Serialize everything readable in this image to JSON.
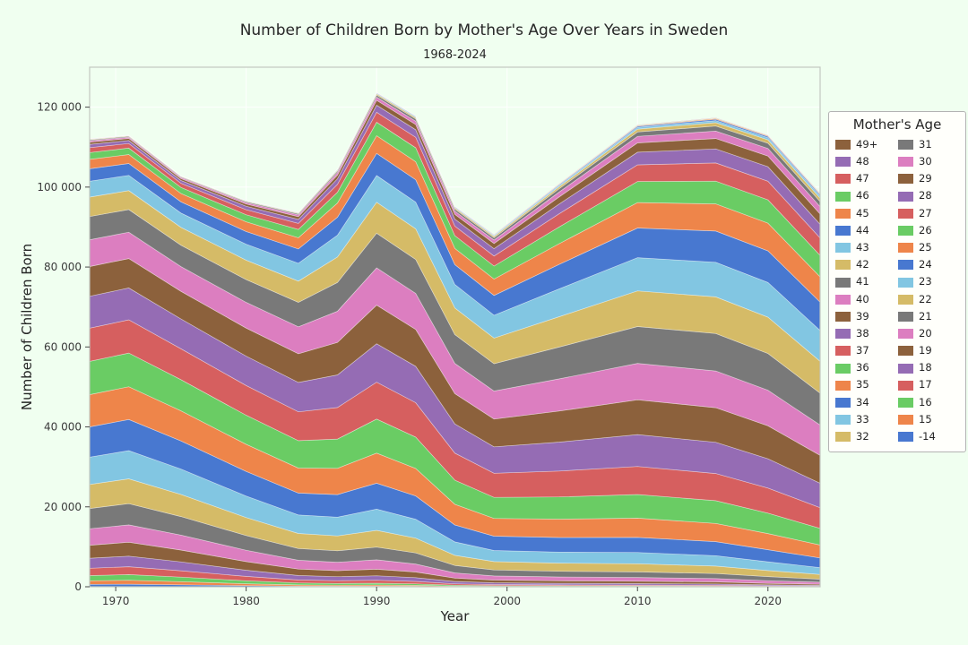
{
  "title": "Number of Children Born by Mother's Age Over Years in Sweden",
  "subtitle": "1968-2024",
  "xlabel": "Year",
  "ylabel": "Number of Children Born",
  "colors": {
    "figure_bg": "#f0fff0",
    "plot_bg": "#f0fff0",
    "grid": "#ffffff",
    "spine": "#c3c8c0",
    "tick": "#4a4a4a",
    "text": "#262626"
  },
  "legend": {
    "title": "Mother's Age",
    "columns": [
      [
        "49+",
        "48",
        "47",
        "46",
        "45",
        "44",
        "43",
        "42",
        "41",
        "40",
        "39",
        "38",
        "37",
        "36",
        "35",
        "34",
        "33",
        "32"
      ],
      [
        "31",
        "30",
        "29",
        "28",
        "27",
        "26",
        "25",
        "24",
        "23",
        "22",
        "21",
        "20",
        "19",
        "18",
        "17",
        "16",
        "15",
        "-14"
      ]
    ]
  },
  "chart_data": {
    "type": "area",
    "stacked": true,
    "title": "Number of Children Born by Mother's Age Over Years in Sweden",
    "subtitle": "1968-2024",
    "xlabel": "Year",
    "ylabel": "Number of Children Born",
    "xlim": [
      1968,
      2024
    ],
    "ylim": [
      0,
      130000
    ],
    "xticks": [
      1970,
      1980,
      1990,
      2000,
      2010,
      2020
    ],
    "yticks": [
      0,
      20000,
      40000,
      60000,
      80000,
      100000,
      120000
    ],
    "ytick_labels": [
      "0",
      "20 000",
      "40 000",
      "60 000",
      "80 000",
      "100 000",
      "120 000"
    ],
    "grid": true,
    "legend_position": "right",
    "x": [
      1968,
      1971,
      1975,
      1980,
      1984,
      1987,
      1990,
      1993,
      1996,
      1999,
      2004,
      2010,
      2016,
      2020,
      2024
    ],
    "series": [
      {
        "name": "-14",
        "color": "#4878d0",
        "values": [
          600,
          660,
          500,
          300,
          180,
          150,
          160,
          130,
          65,
          50,
          40,
          35,
          30,
          20,
          15
        ]
      },
      {
        "name": "15",
        "color": "#ee854a",
        "values": [
          900,
          980,
          770,
          470,
          300,
          260,
          280,
          230,
          120,
          90,
          75,
          65,
          55,
          35,
          25
        ]
      },
      {
        "name": "16",
        "color": "#6acc64",
        "values": [
          1310,
          1410,
          1140,
          730,
          480,
          430,
          460,
          380,
          210,
          160,
          130,
          120,
          100,
          70,
          50
        ]
      },
      {
        "name": "17",
        "color": "#d65f5f",
        "values": [
          1840,
          1970,
          1610,
          1090,
          750,
          680,
          730,
          610,
          350,
          270,
          230,
          210,
          190,
          130,
          95
        ]
      },
      {
        "name": "18",
        "color": "#956cb4",
        "values": [
          2490,
          2650,
          2220,
          1560,
          1120,
          1020,
          1120,
          940,
          570,
          430,
          390,
          370,
          320,
          230,
          170
        ]
      },
      {
        "name": "19",
        "color": "#8c613c",
        "values": [
          3260,
          3460,
          2940,
          2150,
          1600,
          1500,
          1650,
          1400,
          870,
          680,
          630,
          600,
          530,
          400,
          290
        ]
      },
      {
        "name": "20",
        "color": "#dc7ec0",
        "values": [
          4130,
          4360,
          3760,
          2850,
          2210,
          2110,
          2340,
          2010,
          1300,
          1030,
          960,
          930,
          830,
          650,
          490
        ]
      },
      {
        "name": "21",
        "color": "#797979",
        "values": [
          5070,
          5300,
          4640,
          3660,
          2940,
          2860,
          3190,
          2780,
          1850,
          1500,
          1430,
          1400,
          1270,
          1010,
          770
        ]
      },
      {
        "name": "22",
        "color": "#d5bb67",
        "values": [
          5990,
          6220,
          5530,
          4520,
          3760,
          3730,
          4200,
          3690,
          2540,
          2080,
          2030,
          2030,
          1850,
          1520,
          1180
        ]
      },
      {
        "name": "23",
        "color": "#82c6e2",
        "values": [
          6850,
          7070,
          6350,
          5370,
          4630,
          4680,
          5310,
          4730,
          3350,
          2790,
          2770,
          2820,
          2600,
          2190,
          1720
        ]
      },
      {
        "name": "24",
        "color": "#4878d0",
        "values": [
          7560,
          7760,
          7040,
          6160,
          5480,
          5640,
          6460,
          5820,
          4250,
          3590,
          3640,
          3760,
          3520,
          3030,
          2410
        ]
      },
      {
        "name": "25",
        "color": "#ee854a",
        "values": [
          8070,
          8220,
          7530,
          6810,
          6250,
          6560,
          7550,
          6890,
          5160,
          4440,
          4590,
          4820,
          4560,
          4020,
          3240
        ]
      },
      {
        "name": "26",
        "color": "#6acc64",
        "values": [
          8330,
          8410,
          7780,
          7250,
          6850,
          7330,
          8510,
          7850,
          6030,
          5270,
          5560,
          5930,
          5680,
          5130,
          4170
        ]
      },
      {
        "name": "27",
        "color": "#d65f5f",
        "values": [
          8300,
          8330,
          7750,
          7440,
          7230,
          7890,
          9230,
          8610,
          6780,
          6020,
          6480,
          7010,
          6800,
          6260,
          5160
        ]
      },
      {
        "name": "28",
        "color": "#956cb4",
        "values": [
          7990,
          7970,
          7450,
          7350,
          7340,
          8170,
          9620,
          9090,
          7310,
          6600,
          7240,
          7970,
          7820,
          7340,
          6120
        ]
      },
      {
        "name": "29",
        "color": "#8c613c",
        "values": [
          7440,
          7360,
          6910,
          7010,
          7180,
          8130,
          9660,
          9230,
          7580,
          6950,
          7780,
          8710,
          8650,
          8250,
          6970
        ]
      },
      {
        "name": "30",
        "color": "#dc7ec0",
        "values": [
          6690,
          6580,
          6190,
          6440,
          6750,
          7800,
          9330,
          9020,
          7550,
          7030,
          8040,
          9130,
          9180,
          8890,
          7600
        ]
      },
      {
        "name": "31",
        "color": "#797979",
        "values": [
          5810,
          5680,
          5350,
          5700,
          6110,
          7190,
          8670,
          8480,
          7220,
          6840,
          7970,
          9210,
          9370,
          9190,
          7960
        ]
      },
      {
        "name": "32",
        "color": "#d5bb67",
        "values": [
          4880,
          4730,
          4460,
          4860,
          5320,
          6380,
          7760,
          7670,
          6640,
          6390,
          7600,
          8920,
          9180,
          9110,
          7990
        ]
      },
      {
        "name": "33",
        "color": "#82c6e2",
        "values": [
          3960,
          3820,
          3600,
          4000,
          4460,
          5460,
          6680,
          6680,
          5870,
          5730,
          6960,
          8300,
          8650,
          8670,
          7700
        ]
      },
      {
        "name": "34",
        "color": "#4878d0",
        "values": [
          3110,
          2970,
          2790,
          3170,
          3590,
          4490,
          5530,
          5600,
          4980,
          4950,
          6120,
          7420,
          7820,
          7910,
          7110
        ]
      },
      {
        "name": "35",
        "color": "#ee854a",
        "values": [
          2350,
          2230,
          2090,
          2420,
          2790,
          3550,
          4410,
          4510,
          4060,
          4100,
          5180,
          6370,
          6800,
          6930,
          6310
        ]
      },
      {
        "name": "36",
        "color": "#6acc64",
        "values": [
          1720,
          1620,
          1510,
          1780,
          2080,
          2700,
          3380,
          3500,
          3180,
          3260,
          4200,
          5260,
          5680,
          5810,
          5360
        ]
      },
      {
        "name": "37",
        "color": "#d65f5f",
        "values": [
          1220,
          1140,
          1050,
          1260,
          1500,
          1980,
          2500,
          2620,
          2400,
          2500,
          3280,
          4170,
          4560,
          4680,
          4370
        ]
      },
      {
        "name": "38",
        "color": "#956cb4",
        "values": [
          830,
          770,
          710,
          860,
          1030,
          1390,
          1770,
          1880,
          1740,
          1830,
          2460,
          3180,
          3520,
          3620,
          3420
        ]
      },
      {
        "name": "39",
        "color": "#8c613c",
        "values": [
          550,
          510,
          460,
          570,
          690,
          940,
          1210,
          1300,
          1210,
          1300,
          1770,
          2330,
          2600,
          2680,
          2570
        ]
      },
      {
        "name": "40",
        "color": "#dc7ec0",
        "values": [
          350,
          320,
          290,
          360,
          440,
          620,
          800,
          860,
          800,
          880,
          1230,
          1630,
          1850,
          1900,
          1850
        ]
      },
      {
        "name": "41",
        "color": "#797979",
        "values": [
          220,
          200,
          180,
          220,
          270,
          390,
          500,
          550,
          520,
          570,
          820,
          1100,
          1270,
          1300,
          1270
        ]
      },
      {
        "name": "42",
        "color": "#d5bb67",
        "values": [
          130,
          120,
          105,
          130,
          160,
          240,
          310,
          340,
          320,
          360,
          520,
          720,
          830,
          850,
          840
        ]
      },
      {
        "name": "43",
        "color": "#82c6e2",
        "values": [
          75,
          65,
          60,
          75,
          90,
          140,
          180,
          210,
          190,
          220,
          320,
          450,
          530,
          530,
          540
        ]
      },
      {
        "name": "44",
        "color": "#4878d0",
        "values": [
          40,
          35,
          30,
          40,
          50,
          80,
          100,
          120,
          110,
          120,
          190,
          270,
          320,
          320,
          330
        ]
      },
      {
        "name": "45",
        "color": "#ee854a",
        "values": [
          22,
          20,
          17,
          22,
          30,
          40,
          55,
          65,
          60,
          70,
          110,
          150,
          190,
          190,
          190
        ]
      },
      {
        "name": "46",
        "color": "#6acc64",
        "values": [
          11,
          10,
          8,
          11,
          15,
          22,
          30,
          35,
          30,
          35,
          60,
          85,
          100,
          100,
          110
        ]
      },
      {
        "name": "47",
        "color": "#d65f5f",
        "values": [
          6,
          5,
          4,
          5,
          7,
          11,
          14,
          18,
          16,
          19,
          30,
          45,
          55,
          55,
          60
        ]
      },
      {
        "name": "48",
        "color": "#956cb4",
        "values": [
          3,
          3,
          2,
          2,
          3,
          5,
          7,
          9,
          8,
          9,
          15,
          23,
          30,
          30,
          30
        ]
      },
      {
        "name": "49+",
        "color": "#8c613c",
        "values": [
          2,
          2,
          1,
          1,
          2,
          3,
          4,
          5,
          4,
          5,
          8,
          12,
          15,
          15,
          16
        ]
      }
    ]
  }
}
